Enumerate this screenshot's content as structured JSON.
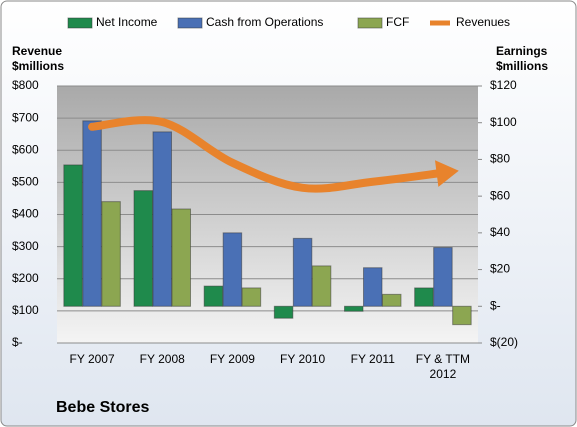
{
  "chart_data": {
    "type": "bar",
    "title": "Bebe Stores",
    "y_label": [
      "Revenue",
      "$millions"
    ],
    "y2_label": [
      "Earnings",
      "$millions"
    ],
    "categories": [
      "FY 2007",
      "FY 2008",
      "FY 2009",
      "FY 2010",
      "FY 2011",
      "FY & TTM 2012"
    ],
    "series": [
      {
        "name": "Net Income",
        "color": "#1f8a4c",
        "axis": "y2",
        "values": [
          77,
          63,
          11,
          -6.5,
          -2.7,
          10
        ]
      },
      {
        "name": "Cash from Operations",
        "color": "#4a70b5",
        "axis": "y2",
        "values": [
          101,
          95,
          40,
          37,
          21,
          32
        ]
      },
      {
        "name": "FCF",
        "color": "#8ca651",
        "axis": "y2",
        "values": [
          57,
          53,
          10,
          22,
          6.5,
          -10
        ]
      },
      {
        "name": "Revenues",
        "color": "#e8832c",
        "type": "line",
        "values": [
          673,
          688,
          561,
          483,
          502,
          530
        ]
      }
    ],
    "ylim": [
      0,
      800
    ],
    "yticks": [
      {
        "value": 0,
        "label": "$-"
      },
      {
        "value": 100,
        "label": "$100"
      },
      {
        "value": 200,
        "label": "$200"
      },
      {
        "value": 300,
        "label": "$300"
      },
      {
        "value": 400,
        "label": "$400"
      },
      {
        "value": 500,
        "label": "$500"
      },
      {
        "value": 600,
        "label": "$600"
      },
      {
        "value": 700,
        "label": "$700"
      },
      {
        "value": 800,
        "label": "$800"
      }
    ],
    "y2lim": [
      -20,
      120
    ],
    "y2ticks": [
      {
        "value": -20,
        "label": "$(20)"
      },
      {
        "value": 0,
        "label": "$-"
      },
      {
        "value": 20,
        "label": "$20"
      },
      {
        "value": 40,
        "label": "$40"
      },
      {
        "value": 60,
        "label": "$60"
      },
      {
        "value": 80,
        "label": "$80"
      },
      {
        "value": 100,
        "label": "$100"
      },
      {
        "value": 120,
        "label": "$120"
      }
    ],
    "grid": true
  }
}
